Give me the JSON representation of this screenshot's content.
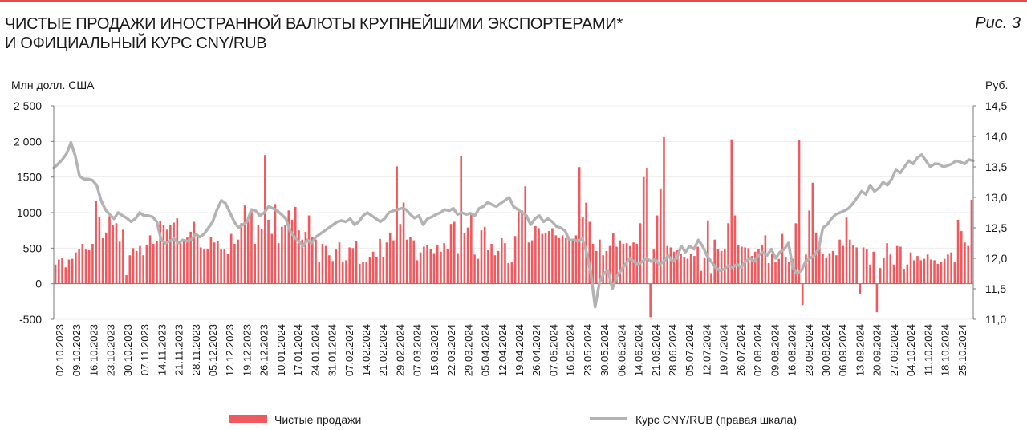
{
  "header": {
    "title_line1": "ЧИСТЫЕ ПРОДАЖИ ИНОСТРАННОЙ ВАЛЮТЫ КРУПНЕЙШИМИ ЭКСПОРТЕРАМИ*",
    "title_line2": "И ОФИЦИАЛЬНЫЙ КУРС CNY/RUB",
    "figure_label": "Рис. 3"
  },
  "chart_data": {
    "type": "bar",
    "left_unit": "Млн долл. США",
    "right_unit": "Руб.",
    "y_left": {
      "min": -500,
      "max": 2500,
      "ticks": [
        "-500",
        "0",
        "500",
        "1000",
        "1500",
        "2 000",
        "2 500"
      ],
      "tick_values": [
        -500,
        0,
        500,
        1000,
        1500,
        2000,
        2500
      ]
    },
    "y_right": {
      "min": 11.0,
      "max": 14.5,
      "ticks": [
        "11,0",
        "11,5",
        "12,0",
        "12,5",
        "13,0",
        "13,5",
        "14,0",
        "14,5"
      ],
      "tick_values": [
        11.0,
        11.5,
        12.0,
        12.5,
        13.0,
        13.5,
        14.0,
        14.5
      ]
    },
    "x_tick_labels": [
      "02.10.2023",
      "09.10.2023",
      "16.10.2023",
      "23.10.2023",
      "30.10.2023",
      "07.11.2023",
      "14.11.2023",
      "21.11.2023",
      "28.11.2023",
      "05.12.2023",
      "12.12.2023",
      "19.12.2023",
      "26.12.2023",
      "10.01.2024",
      "17.01.2024",
      "24.01.2024",
      "31.01.2024",
      "07.02.2024",
      "14.02.2024",
      "21.02.2024",
      "29.02.2024",
      "07.03.2024",
      "15.03.2024",
      "22.03.2024",
      "29.03.2024",
      "05.04.2024",
      "12.04.2024",
      "19.04.2024",
      "26.04.2024",
      "07.05.2024",
      "16.05.2024",
      "23.05.2024",
      "30.05.2024",
      "06.06.2024",
      "14.06.2024",
      "21.06.2024",
      "28.06.2024",
      "05.07.2024",
      "12.07.2024",
      "19.07.2024",
      "26.07.2024",
      "02.08.2024",
      "09.08.2024",
      "16.08.2024",
      "23.08.2024",
      "30.08.2024",
      "06.09.2024",
      "13.09.2024",
      "20.09.2024",
      "27.09.2024",
      "04.10.2024",
      "11.10.2024",
      "18.10.2024",
      "25.10.2024"
    ],
    "series": [
      {
        "name": "Чистые продажи",
        "type": "bar",
        "axis": "left",
        "color": "#f05a5e",
        "values": [
          270,
          340,
          360,
          230,
          340,
          350,
          440,
          480,
          560,
          480,
          470,
          560,
          1160,
          940,
          640,
          720,
          950,
          830,
          850,
          590,
          760,
          120,
          400,
          500,
          460,
          530,
          400,
          550,
          680,
          560,
          600,
          880,
          830,
          760,
          820,
          860,
          920,
          590,
          600,
          650,
          730,
          870,
          670,
          510,
          480,
          490,
          650,
          580,
          600,
          480,
          480,
          420,
          700,
          560,
          620,
          850,
          1100,
          880,
          1050,
          560,
          830,
          770,
          1810,
          900,
          700,
          1120,
          570,
          800,
          830,
          1030,
          900,
          1080,
          750,
          620,
          730,
          960,
          650,
          620,
          300,
          560,
          530,
          400,
          320,
          480,
          580,
          300,
          330,
          510,
          500,
          600,
          280,
          310,
          300,
          380,
          450,
          380,
          630,
          380,
          580,
          720,
          610,
          1650,
          840,
          1140,
          620,
          650,
          610,
          330,
          440,
          520,
          540,
          490,
          430,
          550,
          450,
          570,
          490,
          840,
          870,
          430,
          1800,
          710,
          790,
          990,
          410,
          350,
          750,
          800,
          470,
          560,
          400,
          460,
          640,
          570,
          290,
          300,
          670,
          1060,
          1030,
          1370,
          580,
          610,
          810,
          780,
          700,
          710,
          740,
          780,
          680,
          640,
          680,
          640,
          650,
          600,
          680,
          1640,
          940,
          1140,
          870,
          560,
          460,
          620,
          400,
          460,
          530,
          710,
          520,
          610,
          560,
          570,
          530,
          580,
          560,
          850,
          1500,
          1620,
          -470,
          480,
          960,
          1340,
          2060,
          530,
          510,
          450,
          470,
          420,
          380,
          350,
          420,
          390,
          520,
          180,
          370,
          890,
          150,
          620,
          490,
          460,
          480,
          850,
          2030,
          960,
          550,
          520,
          510,
          500,
          390,
          450,
          490,
          550,
          680,
          290,
          420,
          300,
          350,
          700,
          380,
          310,
          350,
          850,
          2020,
          -300,
          410,
          1030,
          1420,
          720,
          550,
          420,
          370,
          430,
          460,
          400,
          620,
          530,
          930,
          620,
          540,
          510,
          -150,
          510,
          490,
          270,
          450,
          -400,
          220,
          370,
          570,
          410,
          270,
          530,
          520,
          210,
          270,
          440,
          330,
          390,
          330,
          350,
          410,
          340,
          330,
          280,
          300,
          350,
          410,
          440,
          300,
          900,
          740,
          580,
          530,
          1180
        ]
      },
      {
        "name": "Курс CNY/RUB (правая шкала)",
        "type": "line",
        "axis": "right",
        "color": "#b3b3b3",
        "values": [
          13.48,
          13.55,
          13.62,
          13.72,
          13.9,
          13.68,
          13.35,
          13.3,
          13.3,
          13.28,
          13.2,
          12.95,
          12.8,
          12.72,
          12.65,
          12.75,
          12.7,
          12.66,
          12.6,
          12.65,
          12.75,
          12.7,
          12.7,
          12.68,
          12.6,
          12.3,
          12.25,
          12.28,
          12.32,
          12.25,
          12.3,
          12.28,
          12.3,
          12.4,
          12.35,
          12.4,
          12.5,
          12.6,
          12.8,
          12.95,
          12.9,
          12.75,
          12.6,
          12.5,
          12.55,
          12.6,
          12.8,
          12.78,
          12.7,
          12.75,
          12.85,
          12.82,
          12.78,
          12.72,
          12.65,
          12.45,
          12.35,
          12.28,
          12.2,
          12.3,
          12.25,
          12.35,
          12.4,
          12.45,
          12.5,
          12.55,
          12.6,
          12.62,
          12.6,
          12.65,
          12.55,
          12.6,
          12.7,
          12.75,
          12.7,
          12.65,
          12.6,
          12.65,
          12.75,
          12.78,
          12.8,
          12.82,
          12.8,
          12.72,
          12.66,
          12.7,
          12.55,
          12.65,
          12.68,
          12.72,
          12.75,
          12.8,
          12.78,
          12.82,
          12.72,
          12.75,
          12.72,
          12.74,
          12.7,
          12.82,
          12.85,
          12.92,
          12.88,
          12.85,
          12.9,
          12.95,
          13.0,
          12.85,
          12.8,
          12.75,
          12.7,
          12.55,
          12.65,
          12.7,
          12.6,
          12.65,
          12.6,
          12.52,
          12.5,
          12.45,
          12.3,
          12.3,
          12.28,
          12.32,
          12.1,
          11.75,
          11.2,
          11.6,
          11.75,
          11.8,
          11.5,
          11.7,
          11.8,
          11.9,
          12.0,
          11.95,
          11.9,
          11.95,
          12.0,
          11.95,
          11.98,
          11.9,
          11.95,
          12.05,
          11.95,
          12.0,
          12.2,
          12.1,
          12.2,
          12.15,
          12.3,
          12.2,
          12.05,
          11.95,
          11.85,
          11.8,
          11.82,
          11.88,
          11.85,
          11.9,
          11.85,
          11.95,
          12.0,
          11.95,
          12.05,
          12.1,
          12.05,
          12.15,
          12.0,
          12.1,
          12.15,
          12.25,
          11.85,
          11.75,
          11.8,
          11.95,
          12.0,
          12.05,
          12.15,
          12.5,
          12.55,
          12.65,
          12.72,
          12.75,
          12.78,
          12.82,
          12.9,
          13.0,
          13.1,
          13.05,
          13.2,
          13.1,
          13.15,
          13.25,
          13.2,
          13.3,
          13.45,
          13.4,
          13.5,
          13.6,
          13.55,
          13.65,
          13.7,
          13.6,
          13.5,
          13.55,
          13.55,
          13.5,
          13.52,
          13.55,
          13.6,
          13.58,
          13.55,
          13.62,
          13.6
        ]
      }
    ],
    "legend": {
      "placement": "bottom"
    }
  }
}
